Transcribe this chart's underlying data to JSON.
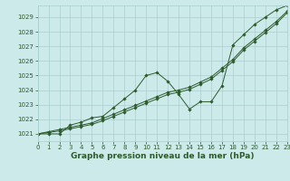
{
  "title": "Graphe pression niveau de la mer (hPa)",
  "x_hours": [
    0,
    1,
    2,
    3,
    4,
    5,
    6,
    7,
    8,
    9,
    10,
    11,
    12,
    13,
    14,
    15,
    16,
    17,
    18,
    19,
    20,
    21,
    22,
    23
  ],
  "line_wavy": [
    1021.0,
    1021.0,
    1021.0,
    1021.6,
    1021.8,
    1022.1,
    1022.2,
    1022.8,
    1023.4,
    1024.0,
    1025.0,
    1025.2,
    1024.6,
    1023.7,
    1022.7,
    1023.2,
    1023.2,
    1024.3,
    1027.1,
    1027.8,
    1028.5,
    1029.0,
    1029.5,
    1029.8
  ],
  "line_trend1": [
    1021.0,
    1021.15,
    1021.3,
    1021.45,
    1021.6,
    1021.75,
    1022.05,
    1022.35,
    1022.65,
    1022.95,
    1023.25,
    1023.55,
    1023.85,
    1024.0,
    1024.2,
    1024.55,
    1024.9,
    1025.5,
    1026.1,
    1026.9,
    1027.5,
    1028.1,
    1028.7,
    1029.4
  ],
  "line_trend2": [
    1021.0,
    1021.1,
    1021.2,
    1021.35,
    1021.5,
    1021.65,
    1021.9,
    1022.2,
    1022.5,
    1022.8,
    1023.1,
    1023.4,
    1023.7,
    1023.85,
    1024.05,
    1024.4,
    1024.75,
    1025.35,
    1025.95,
    1026.75,
    1027.35,
    1027.95,
    1028.55,
    1029.3
  ],
  "bg_color": "#cceaea",
  "grid_color": "#aacece",
  "line_color": "#2d5a2d",
  "text_color": "#2d5a2d",
  "marker": "D",
  "marker_size": 1.8,
  "lw": 0.7,
  "ylim": [
    1020.5,
    1029.8
  ],
  "yticks": [
    1021,
    1022,
    1023,
    1024,
    1025,
    1026,
    1027,
    1028,
    1029
  ],
  "xlim": [
    0,
    23
  ],
  "xticks": [
    0,
    1,
    2,
    3,
    4,
    5,
    6,
    7,
    8,
    9,
    10,
    11,
    12,
    13,
    14,
    15,
    16,
    17,
    18,
    19,
    20,
    21,
    22,
    23
  ],
  "title_fontsize": 6.5,
  "tick_fontsize": 5.0
}
